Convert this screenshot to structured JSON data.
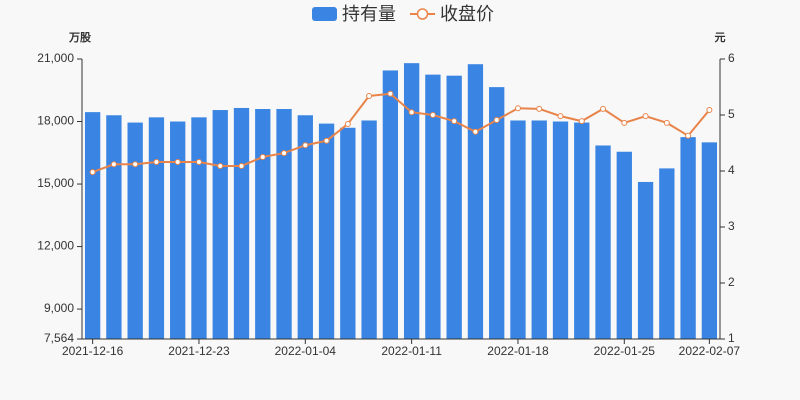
{
  "chart_data": {
    "type": "bar-line",
    "legend_position": "top",
    "y_axis_name": "万股",
    "y2_axis_name": "元",
    "categories": [
      "2021-12-16",
      null,
      null,
      null,
      null,
      "2021-12-23",
      null,
      null,
      null,
      null,
      "2022-01-04",
      null,
      null,
      null,
      null,
      "2022-01-11",
      null,
      null,
      null,
      null,
      "2022-01-18",
      null,
      null,
      null,
      null,
      "2022-01-25",
      null,
      null,
      null,
      "2022-02-07"
    ],
    "series": [
      {
        "name": "持有量",
        "type": "bar",
        "color": "#3a84e3",
        "values": [
          18450,
          18300,
          17950,
          18200,
          18000,
          18200,
          18550,
          18650,
          18600,
          18600,
          18300,
          17900,
          17700,
          18050,
          20450,
          20800,
          20250,
          20200,
          20750,
          19650,
          18050,
          18050,
          18000,
          17950,
          16850,
          16550,
          15100,
          15750,
          17250,
          17000
        ]
      },
      {
        "name": "收盘价",
        "type": "line",
        "axis": "y2",
        "color": "#e8844a",
        "values": [
          3.98,
          4.12,
          4.12,
          4.16,
          4.16,
          4.16,
          4.09,
          4.09,
          4.25,
          4.32,
          4.46,
          4.54,
          4.84,
          5.34,
          5.38,
          5.05,
          5.0,
          4.89,
          4.7,
          4.91,
          5.12,
          5.11,
          4.98,
          4.89,
          5.11,
          4.86,
          4.98,
          4.86,
          4.63,
          5.09
        ]
      }
    ],
    "ylim": [
      7564,
      21000
    ],
    "yticks": [
      {
        "value": 7564,
        "label": "7,564"
      },
      {
        "value": 9000,
        "label": "9,000"
      },
      {
        "value": 12000,
        "label": "12,000"
      },
      {
        "value": 15000,
        "label": "15,000"
      },
      {
        "value": 18000,
        "label": "18,000"
      },
      {
        "value": 21000,
        "label": "21,000"
      }
    ],
    "y2lim": [
      1,
      6
    ],
    "y2ticks": [
      1,
      2,
      3,
      4,
      5,
      6
    ],
    "grid": false
  }
}
